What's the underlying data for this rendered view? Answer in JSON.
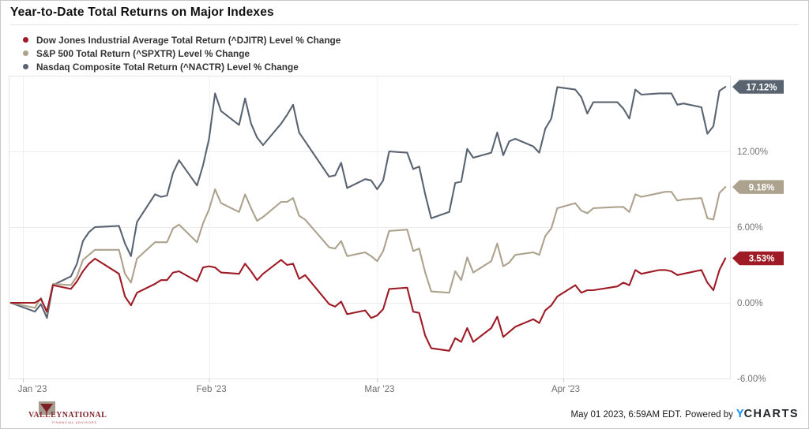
{
  "title": "Year-to-Date Total Returns on Major Indexes",
  "legend": [
    {
      "label": "Dow Jones Industrial Average Total Return (^DJITR) Level % Change",
      "color": "#9e1b26"
    },
    {
      "label": "S&P 500 Total Return (^SPXTR) Level % Change",
      "color": "#ada28e"
    },
    {
      "label": "Nasdaq Composite Total Return (^NACTR) Level % Change",
      "color": "#5a6471"
    }
  ],
  "footer": {
    "timestamp": "May 01 2023, 6:59AM EDT.",
    "powered_by": "Powered by",
    "brand_y": "Y",
    "brand_rest": "CHARTS",
    "logo_line1": "VALLEY",
    "logo_line2": "NATIONAL",
    "logo_sub": "FINANCIAL ADVISORS"
  },
  "chart_data": {
    "type": "line",
    "title": "Year-to-Date Total Returns on Major Indexes",
    "x_unit": "calendar days since Jan 1 2023 (trading days only)",
    "ylim": [
      -6,
      18
    ],
    "grid": true,
    "legend_position": "top-left",
    "x_axis_ticks": [
      {
        "label": "Jan '23",
        "day": 0
      },
      {
        "label": "Feb '23",
        "day": 31
      },
      {
        "label": "Mar '23",
        "day": 59
      },
      {
        "label": "Apr '23",
        "day": 90
      }
    ],
    "y_axis_ticks": [
      {
        "label": "12.00%",
        "value": 12
      },
      {
        "label": "6.00%",
        "value": 6
      },
      {
        "label": "0.00%",
        "value": 0
      },
      {
        "label": "-6.00%",
        "value": -6
      }
    ],
    "series": [
      {
        "name": "Dow Jones Industrial Average Total Return (^DJITR)",
        "end_label": "3.53%",
        "end_value": 3.53,
        "color": "#9e1b26",
        "points": [
          [
            -2,
            0
          ],
          [
            2,
            0.0
          ],
          [
            3,
            0.3
          ],
          [
            4,
            -0.7
          ],
          [
            5,
            1.4
          ],
          [
            8,
            1.1
          ],
          [
            9,
            1.7
          ],
          [
            10,
            2.5
          ],
          [
            11,
            3.1
          ],
          [
            12,
            3.5
          ],
          [
            16,
            2.3
          ],
          [
            17,
            0.5
          ],
          [
            18,
            -0.2
          ],
          [
            19,
            0.8
          ],
          [
            22,
            1.5
          ],
          [
            23,
            1.8
          ],
          [
            24,
            1.8
          ],
          [
            25,
            2.4
          ],
          [
            26,
            2.5
          ],
          [
            29,
            1.7
          ],
          [
            30,
            2.8
          ],
          [
            31,
            2.9
          ],
          [
            32,
            2.8
          ],
          [
            33,
            2.4
          ],
          [
            36,
            2.3
          ],
          [
            37,
            3.1
          ],
          [
            38,
            2.5
          ],
          [
            39,
            1.8
          ],
          [
            40,
            2.3
          ],
          [
            43,
            3.4
          ],
          [
            44,
            3.0
          ],
          [
            45,
            3.1
          ],
          [
            46,
            1.9
          ],
          [
            47,
            2.2
          ],
          [
            51,
            -0.1
          ],
          [
            52,
            -0.3
          ],
          [
            53,
            0.1
          ],
          [
            54,
            -0.9
          ],
          [
            57,
            -0.6
          ],
          [
            58,
            -1.2
          ],
          [
            59,
            -1.0
          ],
          [
            60,
            -0.5
          ],
          [
            61,
            1.1
          ],
          [
            64,
            1.2
          ],
          [
            65,
            -0.7
          ],
          [
            66,
            -0.8
          ],
          [
            67,
            -2.6
          ],
          [
            68,
            -3.6
          ],
          [
            71,
            -3.8
          ],
          [
            72,
            -2.8
          ],
          [
            73,
            -3.1
          ],
          [
            74,
            -2.0
          ],
          [
            75,
            -3.1
          ],
          [
            78,
            -2.0
          ],
          [
            79,
            -1.1
          ],
          [
            80,
            -2.7
          ],
          [
            81,
            -2.3
          ],
          [
            82,
            -1.9
          ],
          [
            85,
            -1.3
          ],
          [
            86,
            -1.6
          ],
          [
            87,
            -0.6
          ],
          [
            88,
            -0.2
          ],
          [
            89,
            0.5
          ],
          [
            92,
            1.4
          ],
          [
            93,
            0.8
          ],
          [
            94,
            1.0
          ],
          [
            95,
            1.0
          ],
          [
            99,
            1.3
          ],
          [
            100,
            1.6
          ],
          [
            101,
            1.4
          ],
          [
            102,
            2.6
          ],
          [
            103,
            2.3
          ],
          [
            106,
            2.6
          ],
          [
            107,
            2.6
          ],
          [
            108,
            2.5
          ],
          [
            109,
            2.2
          ],
          [
            110,
            2.3
          ],
          [
            113,
            2.6
          ],
          [
            114,
            1.6
          ],
          [
            115,
            1.0
          ],
          [
            116,
            2.6
          ],
          [
            117,
            3.53
          ]
        ]
      },
      {
        "name": "S&P 500 Total Return (^SPXTR)",
        "end_label": "9.18%",
        "end_value": 9.18,
        "color": "#ada28e",
        "points": [
          [
            -2,
            0
          ],
          [
            2,
            -0.4
          ],
          [
            3,
            0.4
          ],
          [
            4,
            -0.8
          ],
          [
            5,
            1.5
          ],
          [
            8,
            1.4
          ],
          [
            9,
            2.1
          ],
          [
            10,
            3.4
          ],
          [
            11,
            3.8
          ],
          [
            12,
            4.2
          ],
          [
            16,
            4.2
          ],
          [
            17,
            2.3
          ],
          [
            18,
            1.6
          ],
          [
            19,
            3.5
          ],
          [
            22,
            4.8
          ],
          [
            23,
            4.8
          ],
          [
            24,
            4.8
          ],
          [
            25,
            5.9
          ],
          [
            26,
            6.2
          ],
          [
            29,
            4.8
          ],
          [
            30,
            6.3
          ],
          [
            31,
            7.4
          ],
          [
            32,
            9.0
          ],
          [
            33,
            7.9
          ],
          [
            36,
            7.2
          ],
          [
            37,
            8.6
          ],
          [
            38,
            7.5
          ],
          [
            39,
            6.5
          ],
          [
            40,
            6.8
          ],
          [
            43,
            8.0
          ],
          [
            44,
            8.0
          ],
          [
            45,
            8.3
          ],
          [
            46,
            6.9
          ],
          [
            47,
            6.6
          ],
          [
            51,
            4.4
          ],
          [
            52,
            4.3
          ],
          [
            53,
            4.9
          ],
          [
            54,
            3.7
          ],
          [
            57,
            4.0
          ],
          [
            58,
            3.7
          ],
          [
            59,
            3.3
          ],
          [
            60,
            4.1
          ],
          [
            61,
            5.7
          ],
          [
            64,
            5.8
          ],
          [
            65,
            4.1
          ],
          [
            66,
            4.3
          ],
          [
            67,
            2.4
          ],
          [
            68,
            0.9
          ],
          [
            71,
            0.8
          ],
          [
            72,
            2.5
          ],
          [
            73,
            1.8
          ],
          [
            74,
            3.6
          ],
          [
            75,
            2.4
          ],
          [
            78,
            3.3
          ],
          [
            79,
            4.7
          ],
          [
            80,
            2.9
          ],
          [
            81,
            3.2
          ],
          [
            82,
            3.8
          ],
          [
            85,
            4.0
          ],
          [
            86,
            3.8
          ],
          [
            87,
            5.3
          ],
          [
            88,
            5.9
          ],
          [
            89,
            7.5
          ],
          [
            92,
            7.9
          ],
          [
            93,
            7.3
          ],
          [
            94,
            7.1
          ],
          [
            95,
            7.5
          ],
          [
            99,
            7.6
          ],
          [
            100,
            7.6
          ],
          [
            101,
            7.2
          ],
          [
            102,
            8.6
          ],
          [
            103,
            8.4
          ],
          [
            106,
            8.7
          ],
          [
            107,
            8.8
          ],
          [
            108,
            8.8
          ],
          [
            109,
            8.1
          ],
          [
            110,
            8.2
          ],
          [
            113,
            8.3
          ],
          [
            114,
            6.7
          ],
          [
            115,
            6.6
          ],
          [
            116,
            8.7
          ],
          [
            117,
            9.18
          ]
        ]
      },
      {
        "name": "Nasdaq Composite Total Return (^NACTR)",
        "end_label": "17.12%",
        "end_value": 17.12,
        "color": "#5a6471",
        "points": [
          [
            -2,
            0
          ],
          [
            2,
            -0.7
          ],
          [
            3,
            -0.1
          ],
          [
            4,
            -1.2
          ],
          [
            5,
            1.4
          ],
          [
            8,
            2.1
          ],
          [
            9,
            3.1
          ],
          [
            10,
            4.9
          ],
          [
            11,
            5.6
          ],
          [
            12,
            6.0
          ],
          [
            16,
            6.1
          ],
          [
            17,
            4.7
          ],
          [
            18,
            3.7
          ],
          [
            19,
            6.4
          ],
          [
            22,
            8.6
          ],
          [
            23,
            8.4
          ],
          [
            24,
            8.5
          ],
          [
            25,
            10.3
          ],
          [
            26,
            11.3
          ],
          [
            29,
            9.3
          ],
          [
            30,
            10.9
          ],
          [
            31,
            13.0
          ],
          [
            32,
            16.6
          ],
          [
            33,
            15.2
          ],
          [
            36,
            14.1
          ],
          [
            37,
            16.2
          ],
          [
            38,
            14.2
          ],
          [
            39,
            13.1
          ],
          [
            40,
            12.5
          ],
          [
            43,
            14.2
          ],
          [
            44,
            14.9
          ],
          [
            45,
            15.7
          ],
          [
            46,
            13.5
          ],
          [
            47,
            12.8
          ],
          [
            51,
            10.0
          ],
          [
            52,
            10.1
          ],
          [
            53,
            11.1
          ],
          [
            54,
            9.1
          ],
          [
            57,
            9.8
          ],
          [
            58,
            9.7
          ],
          [
            59,
            9.0
          ],
          [
            60,
            9.7
          ],
          [
            61,
            12.0
          ],
          [
            64,
            11.9
          ],
          [
            65,
            10.6
          ],
          [
            66,
            10.8
          ],
          [
            67,
            8.6
          ],
          [
            68,
            6.7
          ],
          [
            71,
            7.2
          ],
          [
            72,
            9.5
          ],
          [
            73,
            9.6
          ],
          [
            74,
            12.2
          ],
          [
            75,
            11.5
          ],
          [
            78,
            11.9
          ],
          [
            79,
            13.5
          ],
          [
            80,
            11.7
          ],
          [
            81,
            12.8
          ],
          [
            82,
            13.0
          ],
          [
            85,
            12.4
          ],
          [
            86,
            11.9
          ],
          [
            87,
            13.8
          ],
          [
            88,
            14.6
          ],
          [
            89,
            17.1
          ],
          [
            92,
            16.9
          ],
          [
            93,
            16.3
          ],
          [
            94,
            15.0
          ],
          [
            95,
            15.9
          ],
          [
            99,
            15.9
          ],
          [
            100,
            15.4
          ],
          [
            101,
            14.6
          ],
          [
            102,
            16.9
          ],
          [
            103,
            16.5
          ],
          [
            106,
            16.6
          ],
          [
            107,
            16.6
          ],
          [
            108,
            16.6
          ],
          [
            109,
            15.7
          ],
          [
            110,
            15.8
          ],
          [
            113,
            15.5
          ],
          [
            114,
            13.4
          ],
          [
            115,
            14.0
          ],
          [
            116,
            16.8
          ],
          [
            117,
            17.12
          ]
        ]
      }
    ]
  }
}
